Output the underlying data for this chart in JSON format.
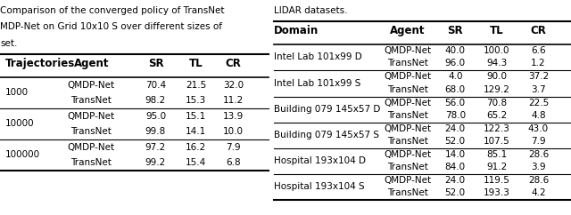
{
  "left_caption": "Comparison of the converged policy of TransNet\nMDP-Net on Grid 10x10 S over different sizes of\nset.",
  "right_caption": "LIDAR datasets.",
  "left_header": [
    "Trajectories",
    "Agent",
    "SR",
    "TL",
    "CR"
  ],
  "left_rows": [
    [
      "",
      "QMDP-Net",
      "70.4",
      "21.5",
      "32.0"
    ],
    [
      "1000",
      "TransNet",
      "98.2",
      "15.3",
      "11.2"
    ],
    [
      "",
      "QMDP-Net",
      "95.0",
      "15.1",
      "13.9"
    ],
    [
      "10000",
      "TransNet",
      "99.8",
      "14.1",
      "10.0"
    ],
    [
      "",
      "QMDP-Net",
      "97.2",
      "16.2",
      "7.9"
    ],
    [
      "100000",
      "TransNet",
      "99.2",
      "15.4",
      "6.8"
    ]
  ],
  "right_header": [
    "Domain",
    "Agent",
    "SR",
    "TL",
    "CR"
  ],
  "right_rows": [
    [
      "",
      "QMDP-Net",
      "40.0",
      "100.0",
      "6.6"
    ],
    [
      "Intel Lab 101x99 D",
      "TransNet",
      "96.0",
      "94.3",
      "1.2"
    ],
    [
      "",
      "QMDP-Net",
      "4.0",
      "90.0",
      "37.2"
    ],
    [
      "Intel Lab 101x99 S",
      "TransNet",
      "68.0",
      "129.2",
      "3.7"
    ],
    [
      "",
      "QMDP-Net",
      "56.0",
      "70.8",
      "22.5"
    ],
    [
      "Building 079 145x57 D",
      "TransNet",
      "78.0",
      "65.2",
      "4.8"
    ],
    [
      "",
      "QMDP-Net",
      "24.0",
      "122.3",
      "43.0"
    ],
    [
      "Building 079 145x57 S",
      "TransNet",
      "52.0",
      "107.5",
      "7.9"
    ],
    [
      "",
      "QMDP-Net",
      "14.0",
      "85.1",
      "28.6"
    ],
    [
      "Hospital 193x104 D",
      "TransNet",
      "84.0",
      "91.2",
      "3.9"
    ],
    [
      "",
      "QMDP-Net",
      "24.0",
      "119.5",
      "28.6"
    ],
    [
      "Hospital 193x104 S",
      "TransNet",
      "52.0",
      "193.3",
      "4.2"
    ]
  ],
  "font_size": 7.5,
  "header_font_size": 8.5
}
